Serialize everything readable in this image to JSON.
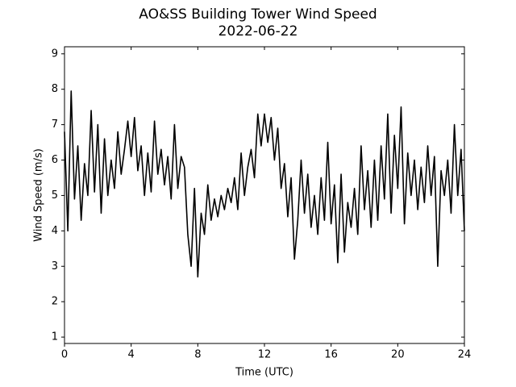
{
  "chart_data": {
    "type": "line",
    "title": "AO&SS Building Tower Wind Speed",
    "subtitle": "2022-06-22",
    "x_label": "Time (UTC)",
    "y_label": "Wind Speed (m/s)",
    "color": "#000000",
    "x": [
      0.0,
      0.2,
      0.4,
      0.6,
      0.8,
      1.0,
      1.2,
      1.4,
      1.6,
      1.8,
      2.0,
      2.2,
      2.4,
      2.6,
      2.8,
      3.0,
      3.2,
      3.4,
      3.6,
      3.8,
      4.0,
      4.2,
      4.4,
      4.6,
      4.8,
      5.0,
      5.2,
      5.4,
      5.6,
      5.8,
      6.0,
      6.2,
      6.4,
      6.6,
      6.8,
      7.0,
      7.2,
      7.4,
      7.6,
      7.8,
      8.0,
      8.2,
      8.4,
      8.6,
      8.8,
      9.0,
      9.2,
      9.4,
      9.6,
      9.8,
      10.0,
      10.2,
      10.4,
      10.6,
      10.8,
      11.0,
      11.2,
      11.4,
      11.6,
      11.8,
      12.0,
      12.2,
      12.4,
      12.6,
      12.8,
      13.0,
      13.2,
      13.4,
      13.6,
      13.8,
      14.0,
      14.2,
      14.4,
      14.6,
      14.8,
      15.0,
      15.2,
      15.4,
      15.6,
      15.8,
      16.0,
      16.2,
      16.4,
      16.6,
      16.8,
      17.0,
      17.2,
      17.4,
      17.6,
      17.8,
      18.0,
      18.2,
      18.4,
      18.6,
      18.8,
      19.0,
      19.2,
      19.4,
      19.6,
      19.8,
      20.0,
      20.2,
      20.4,
      20.6,
      20.8,
      21.0,
      21.2,
      21.4,
      21.6,
      21.8,
      22.0,
      22.2,
      22.4,
      22.6,
      22.8,
      23.0,
      23.2,
      23.4,
      23.6,
      23.8,
      24.0
    ],
    "values": [
      6.8,
      4.0,
      7.95,
      4.9,
      6.4,
      4.3,
      5.9,
      5.0,
      7.4,
      5.1,
      7.0,
      4.5,
      6.6,
      5.0,
      6.0,
      5.2,
      6.8,
      5.6,
      6.3,
      7.1,
      6.1,
      7.2,
      5.7,
      6.4,
      5.0,
      6.2,
      5.1,
      7.1,
      5.6,
      6.3,
      5.3,
      6.1,
      4.9,
      7.0,
      5.2,
      6.1,
      5.8,
      3.9,
      3.0,
      5.2,
      2.7,
      4.5,
      3.9,
      5.3,
      4.3,
      4.9,
      4.4,
      5.0,
      4.6,
      5.2,
      4.8,
      5.5,
      4.6,
      6.2,
      5.0,
      5.8,
      6.3,
      5.5,
      7.3,
      6.4,
      7.3,
      6.5,
      7.2,
      6.0,
      6.9,
      5.2,
      5.9,
      4.4,
      5.5,
      3.2,
      4.3,
      6.0,
      4.5,
      5.6,
      4.1,
      5.0,
      3.9,
      5.5,
      4.3,
      6.5,
      4.2,
      5.3,
      3.1,
      5.6,
      3.4,
      4.8,
      4.1,
      5.2,
      3.9,
      6.4,
      4.6,
      5.7,
      4.1,
      6.0,
      4.3,
      6.4,
      4.9,
      7.3,
      4.5,
      6.7,
      5.2,
      7.5,
      4.2,
      6.2,
      5.0,
      6.0,
      4.6,
      5.8,
      4.8,
      6.4,
      5.0,
      6.1,
      3.0,
      5.7,
      5.0,
      6.0,
      4.5,
      7.0,
      5.0,
      6.3,
      4.0
    ],
    "xlim": [
      0,
      24
    ],
    "xticks": [
      0,
      4,
      8,
      12,
      16,
      20,
      24
    ],
    "ylim": [
      0.82,
      9.2
    ],
    "yticks": [
      1,
      2,
      3,
      4,
      5,
      6,
      7,
      8,
      9
    ]
  }
}
